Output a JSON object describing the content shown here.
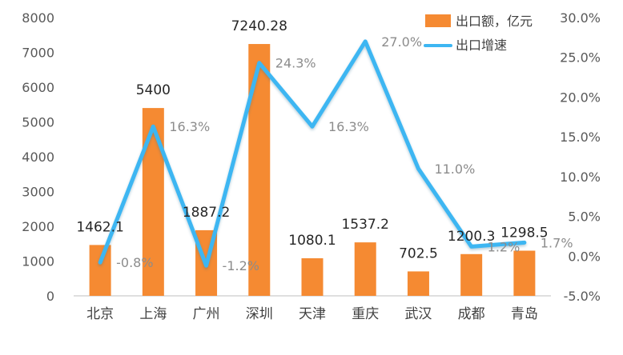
{
  "chart_data": {
    "type": "bar",
    "categories": [
      "北京",
      "上海",
      "广州",
      "深圳",
      "天津",
      "重庆",
      "武汉",
      "成都",
      "青岛"
    ],
    "series": [
      {
        "name": "出口额，亿元",
        "type": "bar",
        "axis": "left",
        "color": "#F58A32",
        "values": [
          1462.1,
          5400,
          1887.2,
          7240.28,
          1080.1,
          1537.2,
          702.5,
          1200.3,
          1298.5
        ],
        "labels": [
          "1462.1",
          "5400",
          "1887.2",
          "7240.28",
          "1080.1",
          "1537.2",
          "702.5",
          "1200.3",
          "1298.5"
        ]
      },
      {
        "name": "出口增速",
        "type": "line",
        "axis": "right",
        "color": "#3DB6F2",
        "values": [
          -0.8,
          16.3,
          -1.2,
          24.3,
          16.3,
          27.0,
          11.0,
          1.2,
          1.7
        ],
        "labels": [
          "-0.8%",
          "16.3%",
          "-1.2%",
          "24.3%",
          "16.3%",
          "27.0%",
          "11.0%",
          "1.2%",
          "1.7%"
        ]
      }
    ],
    "y_left": {
      "range": [
        0,
        8000
      ],
      "ticks": [
        0,
        1000,
        2000,
        3000,
        4000,
        5000,
        6000,
        7000,
        8000
      ],
      "tick_labels": [
        "0",
        "1000",
        "2000",
        "3000",
        "4000",
        "5000",
        "6000",
        "7000",
        "8000"
      ]
    },
    "y_right": {
      "range": [
        -5.0,
        30.0
      ],
      "ticks": [
        -5,
        0,
        5,
        10,
        15,
        20,
        25,
        30
      ],
      "tick_labels": [
        "-5.0%",
        "0.0%",
        "5.0%",
        "10.0%",
        "15.0%",
        "20.0%",
        "25.0%",
        "30.0%"
      ]
    },
    "grid": false,
    "legend_position": "top-right"
  }
}
